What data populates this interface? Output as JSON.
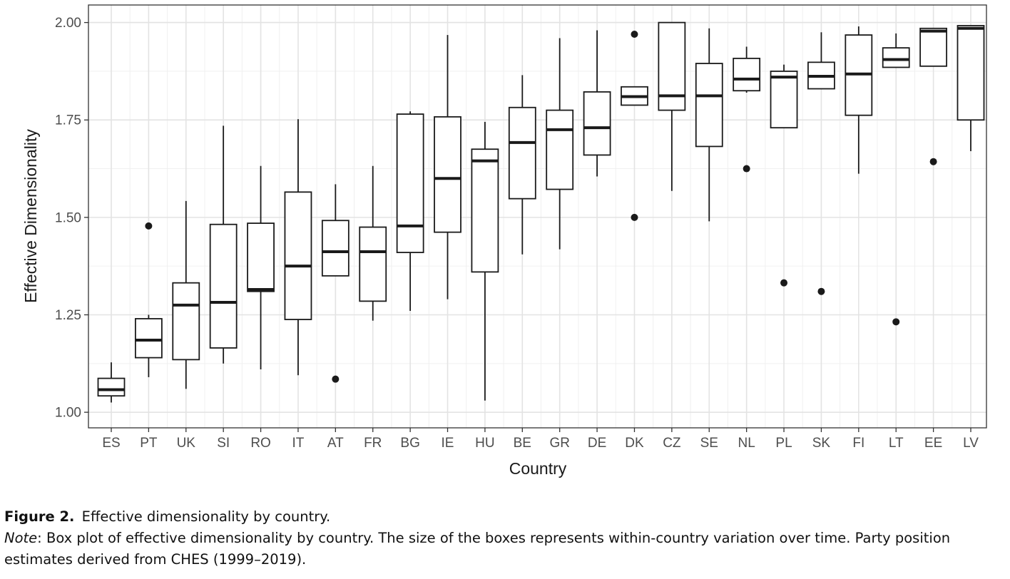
{
  "chart_data": {
    "type": "boxplot",
    "xlabel": "Country",
    "ylabel": "Effective Dimensionality",
    "ylim": [
      0.96,
      2.045
    ],
    "yticks": [
      1.0,
      1.25,
      1.5,
      1.75,
      2.0
    ],
    "ytick_labels": [
      "1.00",
      "1.25",
      "1.50",
      "1.75",
      "2.00"
    ],
    "grid": true,
    "categories": [
      "ES",
      "PT",
      "UK",
      "SI",
      "RO",
      "IT",
      "AT",
      "FR",
      "BG",
      "IE",
      "HU",
      "BE",
      "GR",
      "DE",
      "DK",
      "CZ",
      "SE",
      "NL",
      "PL",
      "SK",
      "FI",
      "LT",
      "EE",
      "LV"
    ],
    "boxes": [
      {
        "label": "ES",
        "whisker_low": 1.025,
        "q1": 1.042,
        "median": 1.058,
        "q3": 1.087,
        "whisker_high": 1.128,
        "outliers": []
      },
      {
        "label": "PT",
        "whisker_low": 1.09,
        "q1": 1.14,
        "median": 1.185,
        "q3": 1.24,
        "whisker_high": 1.25,
        "outliers": [
          1.478
        ]
      },
      {
        "label": "UK",
        "whisker_low": 1.06,
        "q1": 1.135,
        "median": 1.275,
        "q3": 1.332,
        "whisker_high": 1.542,
        "outliers": []
      },
      {
        "label": "SI",
        "whisker_low": 1.125,
        "q1": 1.165,
        "median": 1.282,
        "q3": 1.482,
        "whisker_high": 1.735,
        "outliers": []
      },
      {
        "label": "RO",
        "whisker_low": 1.11,
        "q1": 1.31,
        "median": 1.315,
        "q3": 1.485,
        "whisker_high": 1.632,
        "outliers": []
      },
      {
        "label": "IT",
        "whisker_low": 1.095,
        "q1": 1.238,
        "median": 1.375,
        "q3": 1.565,
        "whisker_high": 1.752,
        "outliers": []
      },
      {
        "label": "AT",
        "whisker_low": 1.35,
        "q1": 1.35,
        "median": 1.412,
        "q3": 1.492,
        "whisker_high": 1.585,
        "outliers": [
          1.085
        ]
      },
      {
        "label": "FR",
        "whisker_low": 1.235,
        "q1": 1.285,
        "median": 1.412,
        "q3": 1.475,
        "whisker_high": 1.632,
        "outliers": []
      },
      {
        "label": "BG",
        "whisker_low": 1.26,
        "q1": 1.41,
        "median": 1.478,
        "q3": 1.765,
        "whisker_high": 1.772,
        "outliers": []
      },
      {
        "label": "IE",
        "whisker_low": 1.29,
        "q1": 1.462,
        "median": 1.6,
        "q3": 1.758,
        "whisker_high": 1.968,
        "outliers": []
      },
      {
        "label": "HU",
        "whisker_low": 1.03,
        "q1": 1.36,
        "median": 1.645,
        "q3": 1.675,
        "whisker_high": 1.745,
        "outliers": []
      },
      {
        "label": "BE",
        "whisker_low": 1.405,
        "q1": 1.548,
        "median": 1.692,
        "q3": 1.782,
        "whisker_high": 1.865,
        "outliers": []
      },
      {
        "label": "GR",
        "whisker_low": 1.418,
        "q1": 1.572,
        "median": 1.725,
        "q3": 1.775,
        "whisker_high": 1.96,
        "outliers": []
      },
      {
        "label": "DE",
        "whisker_low": 1.605,
        "q1": 1.66,
        "median": 1.73,
        "q3": 1.822,
        "whisker_high": 1.98,
        "outliers": []
      },
      {
        "label": "DK",
        "whisker_low": 1.788,
        "q1": 1.788,
        "median": 1.81,
        "q3": 1.835,
        "whisker_high": 1.835,
        "outliers": [
          1.97,
          1.5
        ]
      },
      {
        "label": "CZ",
        "whisker_low": 1.568,
        "q1": 1.775,
        "median": 1.812,
        "q3": 2.0,
        "whisker_high": 2.0,
        "outliers": []
      },
      {
        "label": "SE",
        "whisker_low": 1.49,
        "q1": 1.682,
        "median": 1.812,
        "q3": 1.895,
        "whisker_high": 1.985,
        "outliers": []
      },
      {
        "label": "NL",
        "whisker_low": 1.82,
        "q1": 1.825,
        "median": 1.855,
        "q3": 1.908,
        "whisker_high": 1.938,
        "outliers": [
          1.625
        ]
      },
      {
        "label": "PL",
        "whisker_low": 1.73,
        "q1": 1.73,
        "median": 1.86,
        "q3": 1.875,
        "whisker_high": 1.892,
        "outliers": [
          1.332
        ]
      },
      {
        "label": "SK",
        "whisker_low": 1.83,
        "q1": 1.83,
        "median": 1.862,
        "q3": 1.898,
        "whisker_high": 1.975,
        "outliers": [
          1.31
        ]
      },
      {
        "label": "FI",
        "whisker_low": 1.612,
        "q1": 1.762,
        "median": 1.868,
        "q3": 1.968,
        "whisker_high": 1.99,
        "outliers": []
      },
      {
        "label": "LT",
        "whisker_low": 1.885,
        "q1": 1.885,
        "median": 1.905,
        "q3": 1.935,
        "whisker_high": 1.972,
        "outliers": [
          1.232
        ]
      },
      {
        "label": "EE",
        "whisker_low": 1.888,
        "q1": 1.888,
        "median": 1.978,
        "q3": 1.985,
        "whisker_high": 1.985,
        "outliers": [
          1.643
        ]
      },
      {
        "label": "LV",
        "whisker_low": 1.67,
        "q1": 1.75,
        "median": 1.985,
        "q3": 1.992,
        "whisker_high": 1.992,
        "outliers": []
      }
    ]
  },
  "caption": {
    "figure_label": "Figure 2.",
    "figure_title": "Effective dimensionality by country.",
    "note_label": "Note",
    "note_text": ": Box plot of effective dimensionality by country. The size of the boxes represents within-country variation over time. Party position estimates derived from CHES (1999–2019)."
  }
}
